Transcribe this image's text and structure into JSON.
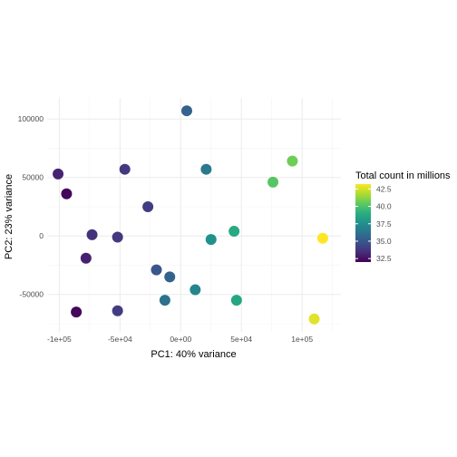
{
  "chart_data": {
    "type": "scatter",
    "xlabel": "PC1: 40% variance",
    "ylabel": "PC2: 23% variance",
    "xlim": [
      -110000,
      132000
    ],
    "ylim": [
      -82000,
      118000
    ],
    "x_ticks": [
      {
        "value": -100000,
        "label": "-1e+05"
      },
      {
        "value": -50000,
        "label": "-5e+04"
      },
      {
        "value": 0,
        "label": "0e+00"
      },
      {
        "value": 50000,
        "label": "5e+04"
      },
      {
        "value": 100000,
        "label": "1e+05"
      }
    ],
    "y_ticks": [
      {
        "value": 100000,
        "label": "100000"
      },
      {
        "value": 50000,
        "label": "50000"
      },
      {
        "value": 0,
        "label": "0"
      },
      {
        "value": -50000,
        "label": "-50000"
      }
    ],
    "grid": true,
    "legend": {
      "title": "Total count in millions",
      "placement": "right",
      "min": 32,
      "max": 43.2,
      "ticks": [
        {
          "value": 42.5,
          "label": "42.5"
        },
        {
          "value": 40.0,
          "label": "40.0"
        },
        {
          "value": 37.5,
          "label": "37.5"
        },
        {
          "value": 35.0,
          "label": "35.0"
        },
        {
          "value": 32.5,
          "label": "32.5"
        }
      ],
      "colors": [
        "#440154",
        "#472d7b",
        "#3b528b",
        "#2c728e",
        "#21918c",
        "#28ae80",
        "#5ec962",
        "#addc30",
        "#fde725"
      ]
    },
    "points": [
      {
        "x": 5000,
        "y": 107000,
        "count": 35.5
      },
      {
        "x": 21000,
        "y": 57000,
        "count": 36.5
      },
      {
        "x": 92000,
        "y": 64000,
        "count": 40.7
      },
      {
        "x": 76000,
        "y": 46000,
        "count": 40.2
      },
      {
        "x": -101000,
        "y": 53000,
        "count": 33.1
      },
      {
        "x": -46000,
        "y": 57000,
        "count": 33.8
      },
      {
        "x": -94000,
        "y": 36000,
        "count": 32.2
      },
      {
        "x": -27000,
        "y": 25000,
        "count": 34.0
      },
      {
        "x": 44000,
        "y": 4000,
        "count": 38.8
      },
      {
        "x": 25000,
        "y": -3000,
        "count": 37.6
      },
      {
        "x": 117000,
        "y": -2000,
        "count": 43.2
      },
      {
        "x": -73000,
        "y": 1000,
        "count": 33.6
      },
      {
        "x": -52000,
        "y": -1000,
        "count": 33.8
      },
      {
        "x": -78000,
        "y": -19000,
        "count": 33.0
      },
      {
        "x": -20000,
        "y": -29000,
        "count": 35.0
      },
      {
        "x": -9000,
        "y": -35000,
        "count": 35.5
      },
      {
        "x": 12000,
        "y": -46000,
        "count": 37.0
      },
      {
        "x": 46000,
        "y": -55000,
        "count": 38.6
      },
      {
        "x": -13000,
        "y": -55000,
        "count": 36.2
      },
      {
        "x": -52000,
        "y": -64000,
        "count": 34.0
      },
      {
        "x": -86000,
        "y": -65000,
        "count": 32.2
      },
      {
        "x": 110000,
        "y": -71000,
        "count": 42.7
      }
    ]
  }
}
